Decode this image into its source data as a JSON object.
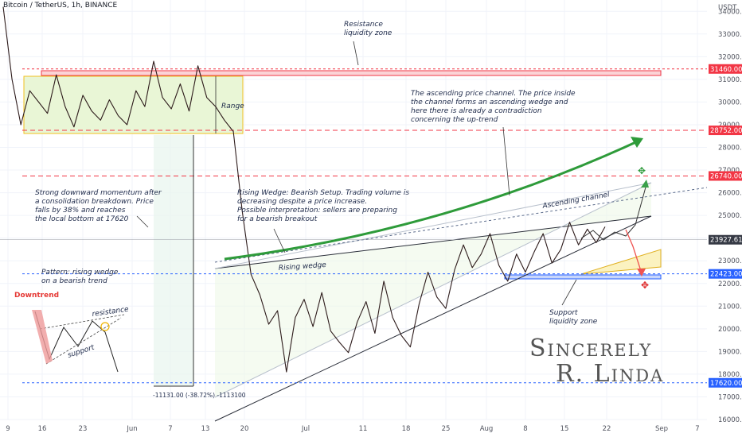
{
  "header": {
    "symbol": "Bitcoin / TetherUS, 1h, BINANCE"
  },
  "chart_data": {
    "type": "line",
    "title": "",
    "currency_label": "USDT",
    "y_ticks": [
      16000,
      17000,
      18000,
      19000,
      20000,
      21000,
      22000,
      23000,
      24000,
      25000,
      26000,
      27000,
      28000,
      29000,
      30000,
      31000,
      32000,
      33000,
      34000
    ],
    "ylim": [
      16000,
      34500
    ],
    "x_ticks": [
      "9",
      "16",
      "23",
      "Jun",
      "7",
      "13",
      "20",
      "Jul",
      "11",
      "18",
      "25",
      "Aug",
      "8",
      "15",
      "22",
      "Sep",
      "7"
    ],
    "price_series": {
      "name": "BTC/USDT",
      "values": [
        34200,
        31000,
        29000,
        30500,
        30000,
        29500,
        31200,
        29800,
        28900,
        30300,
        29600,
        29200,
        30100,
        29400,
        29000,
        30500,
        29800,
        31800,
        30200,
        29700,
        30800,
        29600,
        31600,
        30200,
        29800,
        29200,
        28700,
        25200,
        22400,
        21500,
        20200,
        20800,
        18100,
        20500,
        21300,
        20100,
        21600,
        19900,
        19400,
        18950,
        20300,
        21200,
        19800,
        22100,
        20500,
        19700,
        19200,
        21100,
        22500,
        21400,
        20900,
        22600,
        23700,
        22700,
        23300,
        24200,
        22800,
        22100,
        23300,
        22500,
        23400,
        24200,
        22900,
        23500,
        24700,
        23700,
        24400,
        23800,
        24500
      ]
    },
    "price_labels": [
      {
        "value": 31460,
        "label": "31460.00",
        "color": "#f23645"
      },
      {
        "value": 28752,
        "label": "28752.00",
        "color": "#f23645"
      },
      {
        "value": 26740,
        "label": "26740.00",
        "color": "#f23645"
      },
      {
        "value": 23927.61,
        "label": "23927.61",
        "color": "#363a45"
      },
      {
        "value": 22423,
        "label": "22423.00",
        "color": "#2962ff"
      },
      {
        "value": 17620,
        "label": "17620.00",
        "color": "#2962ff"
      }
    ],
    "measure_label": "-11131.00 (-38.72%) -1113100",
    "annotations": {
      "resistance_zone": [
        "Resistance",
        "liquidity zone"
      ],
      "range": "Range",
      "channel_text": [
        "The ascending price channel. The price inside",
        "the channel forms an ascending wedge and",
        "here there is already a contradiction",
        "concerning the up-trend"
      ],
      "momentum_text": [
        "Strong downward momentum after",
        "a consolidation breakdown. Price",
        "falls by 38% and reaches",
        "the local bottom at 17620"
      ],
      "wedge_setup_text": [
        "Rising Wedge: Bearish Setup. Trading volume is",
        "decreasing despite a price increase.",
        "Possible interpretation: sellers are preparing",
        "for a bearish breakout"
      ],
      "ascending_channel": "Ascending channel",
      "rising_wedge": "Rising wedge",
      "pattern_text": [
        "Pattern: rising wedge",
        "on a bearish trend"
      ],
      "downtrend": "Downtrend",
      "resistance": "resistance",
      "support": "support",
      "support_zone": [
        "Support",
        "liquidity zone"
      ],
      "signature": [
        "Sincerely",
        "R. Linda"
      ]
    },
    "colors": {
      "up": "#26a69a",
      "down": "#ef5350",
      "price_line": "#2d1b1b",
      "green_arrow": "#2e9b3a",
      "red_level": "#f23645",
      "blue_level": "#2962ff"
    }
  }
}
